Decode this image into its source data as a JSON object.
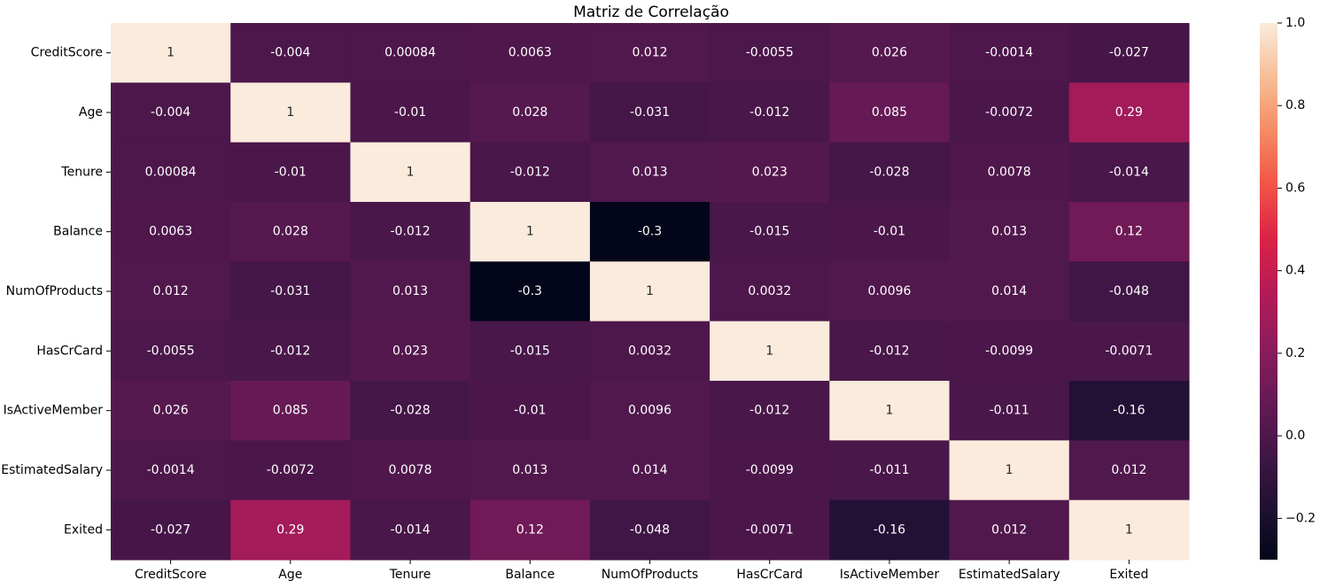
{
  "chart_data": {
    "type": "heatmap",
    "title": "Matriz de Correlação",
    "rows": [
      "CreditScore",
      "Age",
      "Tenure",
      "Balance",
      "NumOfProducts",
      "HasCrCard",
      "IsActiveMember",
      "EstimatedSalary",
      "Exited"
    ],
    "columns": [
      "CreditScore",
      "Age",
      "Tenure",
      "Balance",
      "NumOfProducts",
      "HasCrCard",
      "IsActiveMember",
      "EstimatedSalary",
      "Exited"
    ],
    "values": [
      [
        1,
        -0.004,
        0.00084,
        0.0063,
        0.012,
        -0.0055,
        0.026,
        -0.0014,
        -0.027
      ],
      [
        -0.004,
        1,
        -0.01,
        0.028,
        -0.031,
        -0.012,
        0.085,
        -0.0072,
        0.29
      ],
      [
        0.00084,
        -0.01,
        1,
        -0.012,
        0.013,
        0.023,
        -0.028,
        0.0078,
        -0.014
      ],
      [
        0.0063,
        0.028,
        -0.012,
        1,
        -0.3,
        -0.015,
        -0.01,
        0.013,
        0.12
      ],
      [
        0.012,
        -0.031,
        0.013,
        -0.3,
        1,
        0.0032,
        0.0096,
        0.014,
        -0.048
      ],
      [
        -0.0055,
        -0.012,
        0.023,
        -0.015,
        0.0032,
        1,
        -0.012,
        -0.0099,
        -0.0071
      ],
      [
        0.026,
        0.085,
        -0.028,
        -0.01,
        0.0096,
        -0.012,
        1,
        -0.011,
        -0.16
      ],
      [
        -0.0014,
        -0.0072,
        0.0078,
        0.013,
        0.014,
        -0.0099,
        -0.011,
        1,
        0.012
      ],
      [
        -0.027,
        0.29,
        -0.014,
        0.12,
        -0.048,
        -0.0071,
        -0.16,
        0.012,
        1
      ]
    ],
    "annotations": [
      [
        "1",
        "-0.004",
        "0.00084",
        "0.0063",
        "0.012",
        "-0.0055",
        "0.026",
        "-0.0014",
        "-0.027"
      ],
      [
        "-0.004",
        "1",
        "-0.01",
        "0.028",
        "-0.031",
        "-0.012",
        "0.085",
        "-0.0072",
        "0.29"
      ],
      [
        "0.00084",
        "-0.01",
        "1",
        "-0.012",
        "0.013",
        "0.023",
        "-0.028",
        "0.0078",
        "-0.014"
      ],
      [
        "0.0063",
        "0.028",
        "-0.012",
        "1",
        "-0.3",
        "-0.015",
        "-0.01",
        "0.013",
        "0.12"
      ],
      [
        "0.012",
        "-0.031",
        "0.013",
        "-0.3",
        "1",
        "0.0032",
        "0.0096",
        "0.014",
        "-0.048"
      ],
      [
        "-0.0055",
        "-0.012",
        "0.023",
        "-0.015",
        "0.0032",
        "1",
        "-0.012",
        "-0.0099",
        "-0.0071"
      ],
      [
        "0.026",
        "0.085",
        "-0.028",
        "-0.01",
        "0.0096",
        "-0.012",
        "1",
        "-0.011",
        "-0.16"
      ],
      [
        "-0.0014",
        "-0.0072",
        "0.0078",
        "0.013",
        "0.014",
        "-0.0099",
        "-0.011",
        "1",
        "0.012"
      ],
      [
        "-0.027",
        "0.29",
        "-0.014",
        "0.12",
        "-0.048",
        "-0.0071",
        "-0.16",
        "0.012",
        "1"
      ]
    ],
    "colorbar": {
      "range": [
        -0.3,
        1.0
      ],
      "ticks": [
        1.0,
        0.8,
        0.6,
        0.4,
        0.2,
        0.0,
        -0.2
      ],
      "tick_labels": [
        "1.0",
        "0.8",
        "0.6",
        "0.4",
        "0.2",
        "0.0",
        "−0.2"
      ],
      "colormap": "rocket"
    },
    "grid": false,
    "legend": "colorbar-right"
  }
}
